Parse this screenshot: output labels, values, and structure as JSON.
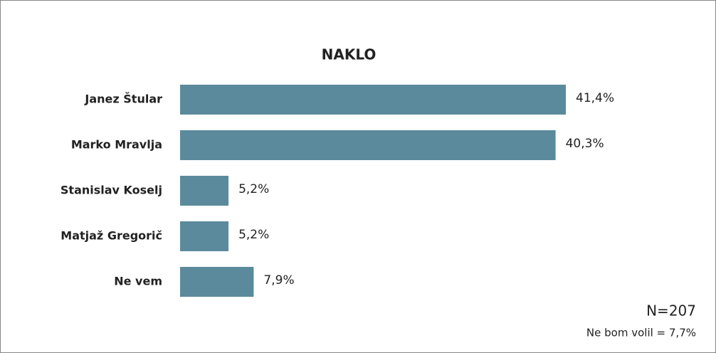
{
  "chart_data": {
    "type": "barh",
    "title": "NAKLO",
    "categories": [
      "Janez Štular",
      "Marko Mravlja",
      "Stanislav Koselj",
      "Matjaž Gregorič",
      "Ne vem"
    ],
    "values": [
      41.4,
      40.3,
      5.2,
      5.2,
      7.9
    ],
    "value_labels": [
      "41,4%",
      "40,3%",
      "5,2%",
      "5,2%",
      "7,9%"
    ],
    "color": "#5b8a9c",
    "annotations": [
      "N=207",
      "Ne bom volil = 7,7%"
    ]
  }
}
